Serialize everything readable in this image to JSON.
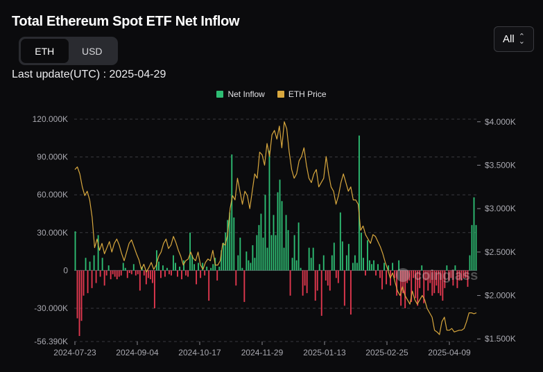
{
  "header": {
    "title": "Total Ethereum Spot ETF Net Inflow",
    "last_update": "Last update(UTC) : 2025-04-29"
  },
  "unit_toggle": {
    "options": [
      "ETH",
      "USD"
    ],
    "selected": "ETH"
  },
  "range_select": {
    "value": "All"
  },
  "watermark": "coinglass",
  "colors": {
    "inflow_positive": "#2ebd73",
    "inflow_negative": "#e2384f",
    "price_line": "#d9a83e",
    "grid": "#3a3a40"
  },
  "chart_data": {
    "type": "bar",
    "x_ticks": [
      "2024-07-23",
      "2024-09-04",
      "2024-10-17",
      "2024-11-29",
      "2025-01-13",
      "2025-02-25",
      "2025-04-09"
    ],
    "y_left_ticks": [
      "120.000K",
      "90.000K",
      "60.000K",
      "30.000K",
      "0",
      "-30.000K",
      "-56.390K"
    ],
    "y_left_values": [
      120000,
      90000,
      60000,
      30000,
      0,
      -30000,
      -56390
    ],
    "y_left_range": [
      -56390,
      120000
    ],
    "y_right_ticks": [
      "$4.000K",
      "$3.500K",
      "$3.000K",
      "$2.500K",
      "$2.000K",
      "$1.500K"
    ],
    "y_right_values": [
      4000,
      3500,
      3000,
      2500,
      2000,
      1500
    ],
    "y_right_range": [
      1470,
      4030
    ],
    "grid": "horizontal dashed",
    "legend_position": "top-center",
    "series": [
      {
        "name": "Net Inflow",
        "axis": "left",
        "type": "bar",
        "values": [
          31000,
          -38000,
          -52000,
          -40000,
          -20000,
          10000,
          -18000,
          7000,
          -14000,
          12000,
          -10000,
          28000,
          -5000,
          10000,
          -12000,
          -4000,
          4000,
          -7000,
          -3000,
          -5000,
          -7000,
          -5000,
          -4000,
          6000,
          2000,
          -6000,
          -2000,
          -3000,
          5000,
          -4000,
          -3000,
          -16000,
          3000,
          -4000,
          -11000,
          -6000,
          -7000,
          -10000,
          -30000,
          16000,
          7000,
          -6000,
          4000,
          -5000,
          2000,
          -3000,
          -4000,
          12000,
          6000,
          -5000,
          3000,
          -7000,
          8000,
          -4000,
          -5000,
          30000,
          12000,
          5000,
          -11000,
          6000,
          -6000,
          6000,
          -4000,
          3000,
          -24000,
          2000,
          5000,
          10000,
          -8000,
          3000,
          16000,
          22000,
          30000,
          40000,
          46000,
          92000,
          42000,
          -12000,
          12000,
          26000,
          2000,
          -25000,
          15000,
          8000,
          6000,
          20000,
          10000,
          28000,
          36000,
          45000,
          26000,
          60000,
          18000,
          95000,
          28000,
          44000,
          28000,
          62000,
          72000,
          55000,
          18000,
          44000,
          32000,
          -20000,
          10000,
          28000,
          8000,
          38000,
          2000,
          -20000,
          -12000,
          -18000,
          18000,
          10000,
          18000,
          -24000,
          -16000,
          5000,
          -36000,
          12000,
          -8000,
          -12000,
          -16000,
          12000,
          22000,
          -6000,
          -10000,
          46000,
          23000,
          -28000,
          12000,
          21000,
          -35000,
          6000,
          12000,
          6000,
          107000,
          30000,
          10000,
          -4000,
          24000,
          8000,
          5000,
          8000,
          -4000,
          5000,
          -6000,
          -15000,
          6000,
          -11000,
          4000,
          -12000,
          6000,
          -6000,
          -20000,
          8000,
          -28000,
          -18000,
          -30000,
          -10000,
          -8000,
          -25000,
          -6000,
          -22000,
          -28000,
          -14000,
          4000,
          -26000,
          -8000,
          -16000,
          -10000,
          -20000,
          -18000,
          -12000,
          -18000,
          -20000,
          -24000,
          -14000,
          4000,
          -8000,
          -6000,
          -12000,
          4000,
          -14000,
          -8000,
          -8000,
          -6000,
          -6000,
          -13000,
          12000,
          36000,
          58000,
          36000
        ]
      },
      {
        "name": "ETH Price",
        "axis": "right",
        "type": "line",
        "values": [
          3450,
          3480,
          3400,
          3250,
          3150,
          3200,
          3100,
          2900,
          2550,
          2650,
          2520,
          2600,
          2480,
          2550,
          2620,
          2500,
          2600,
          2650,
          2580,
          2480,
          2400,
          2500,
          2600,
          2640,
          2560,
          2480,
          2410,
          2300,
          2360,
          2270,
          2320,
          2380,
          2300,
          2350,
          2450,
          2500,
          2600,
          2650,
          2540,
          2580,
          2680,
          2610,
          2520,
          2450,
          2350,
          2400,
          2420,
          2500,
          2430,
          2400,
          2500,
          2350,
          2300,
          2380,
          2420,
          2400,
          2520,
          2350,
          2350,
          2400,
          2600,
          2580,
          2700,
          3000,
          3150,
          3100,
          3350,
          3200,
          3050,
          3200,
          3150,
          3000,
          3200,
          3400,
          3350,
          3650,
          3620,
          3500,
          3750,
          3600,
          3850,
          3900,
          3800,
          3950,
          3700,
          4000,
          3920,
          3650,
          3450,
          3350,
          3400,
          3550,
          3600,
          3700,
          3500,
          3350,
          3300,
          3400,
          3450,
          3250,
          3300,
          3350,
          3600,
          3400,
          3250,
          3200,
          3050,
          3150,
          3300,
          3400,
          3300,
          3200,
          3250,
          3100,
          3100,
          3050,
          2750,
          2800,
          2700,
          2650,
          2600,
          2700,
          2680,
          2620,
          2560,
          2480,
          2380,
          2300,
          2200,
          2260,
          2150,
          2050,
          2000,
          2100,
          2000,
          1950,
          1900,
          2050,
          1950,
          1900,
          1950,
          2000,
          1950,
          1850,
          1800,
          1750,
          1600,
          1580,
          1550,
          1700,
          1750,
          1600,
          1600,
          1620,
          1580,
          1590,
          1600,
          1600,
          1620,
          1700,
          1800,
          1800,
          1790,
          1800
        ]
      }
    ]
  }
}
